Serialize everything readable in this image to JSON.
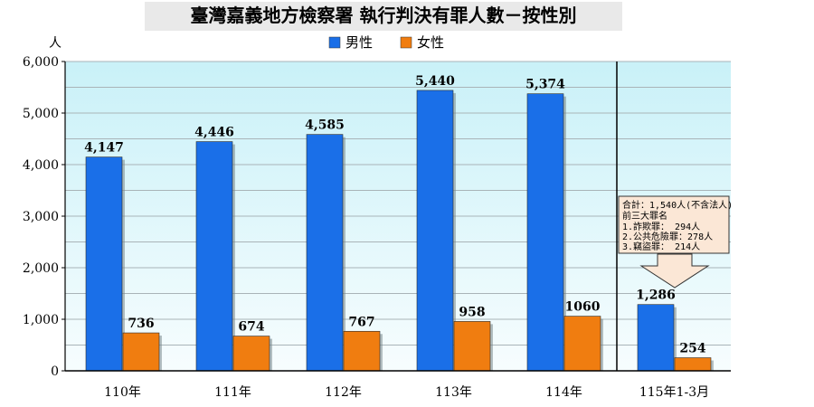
{
  "chart_data": {
    "type": "bar",
    "title": "臺灣嘉義地方檢察署  執行判決有罪人數－按性別",
    "ylabel": "人",
    "ylim": [
      0,
      6000
    ],
    "yticks": [
      "0",
      "1,000",
      "2,000",
      "3,000",
      "4,000",
      "5,000",
      "6,000"
    ],
    "categories": [
      "110年",
      "111年",
      "112年",
      "113年",
      "114年",
      "115年1-3月"
    ],
    "series": [
      {
        "name": "男性",
        "color": "#1a6fe8",
        "values": [
          4147,
          4446,
          4585,
          5440,
          5374,
          1286
        ],
        "labels": [
          "4,147",
          "4,446",
          "4,585",
          "5,440",
          "5,374",
          "1,286"
        ]
      },
      {
        "name": "女性",
        "color": "#f07d10",
        "values": [
          736,
          674,
          767,
          958,
          1060,
          254
        ],
        "labels": [
          "736",
          "674",
          "767",
          "958",
          "1060",
          "254"
        ]
      }
    ],
    "legend_position": "top-center",
    "grid": true,
    "annotation": {
      "lines": [
        "合計：1,540人(不含法人)",
        "前三大罪名",
        "1.詐欺罪：    294人",
        "2.公共危險罪：278人",
        "3.竊盜罪：    214人"
      ],
      "points_to": "115年1-3月"
    }
  }
}
